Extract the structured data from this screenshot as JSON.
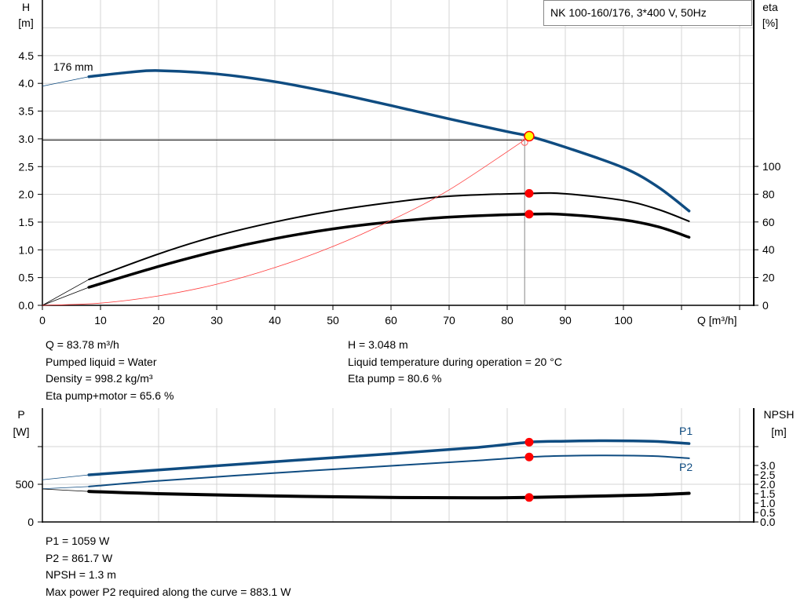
{
  "chart_data": [
    {
      "type": "line",
      "legend_box": "NK 100-160/176, 3*400 V, 50Hz",
      "curve_label": "176 mm",
      "xlabel": "Q [m³/h]",
      "ylabel_left": [
        "H",
        "[m]"
      ],
      "ylabel_right": [
        "eta",
        "[%]"
      ],
      "xlim": [
        0,
        120
      ],
      "ylim_left": [
        0,
        5
      ],
      "ylim_right": [
        0,
        220
      ],
      "x_ticks": [
        "0",
        "10",
        "20",
        "30",
        "40",
        "50",
        "60",
        "70",
        "80",
        "90",
        "100"
      ],
      "y_ticks_left": [
        "0.0",
        "0.5",
        "1.0",
        "1.5",
        "2.0",
        "2.5",
        "3.0",
        "3.5",
        "4.0",
        "4.5"
      ],
      "y_ticks_right": [
        "0",
        "20",
        "40",
        "60",
        "80",
        "100"
      ],
      "grid": true,
      "series": [
        {
          "id": "head",
          "axis": "left",
          "color": "#0f4c81",
          "points": [
            [
              8,
              4.12
            ],
            [
              15,
              4.2
            ],
            [
              20,
              4.23
            ],
            [
              30,
              4.17
            ],
            [
              40,
              4.03
            ],
            [
              50,
              3.83
            ],
            [
              60,
              3.6
            ],
            [
              70,
              3.36
            ],
            [
              80,
              3.13
            ],
            [
              83.78,
              3.048
            ],
            [
              90,
              2.85
            ],
            [
              100,
              2.48
            ],
            [
              106,
              2.13
            ],
            [
              111.3,
              1.7
            ]
          ],
          "extension": [
            [
              0,
              3.95
            ],
            [
              8,
              4.12
            ]
          ]
        },
        {
          "id": "eta-pump",
          "axis": "right",
          "color": "#000000",
          "points": [
            [
              8,
              18.6
            ],
            [
              20,
              37
            ],
            [
              30,
              50
            ],
            [
              40,
              60
            ],
            [
              50,
              68
            ],
            [
              60,
              74
            ],
            [
              70,
              78.5
            ],
            [
              83.78,
              80.6
            ],
            [
              90,
              80.3
            ],
            [
              100,
              75.5
            ],
            [
              106,
              69
            ],
            [
              111.3,
              60.5
            ]
          ],
          "extension": [
            [
              0,
              0
            ],
            [
              8,
              18.6
            ]
          ]
        },
        {
          "id": "eta-pump-motor",
          "axis": "right",
          "color": "#000000",
          "points": [
            [
              8,
              13
            ],
            [
              20,
              28
            ],
            [
              30,
              39
            ],
            [
              40,
              48
            ],
            [
              50,
              55
            ],
            [
              60,
              60
            ],
            [
              70,
              63.5
            ],
            [
              83.78,
              65.6
            ],
            [
              90,
              65.3
            ],
            [
              100,
              61.5
            ],
            [
              106,
              56.5
            ],
            [
              111.3,
              49
            ]
          ],
          "extension": [
            [
              0,
              0
            ],
            [
              8,
              13
            ]
          ]
        },
        {
          "id": "system-curve",
          "axis": "left",
          "color": "#ff3b3b",
          "points": [
            [
              0,
              0
            ],
            [
              10,
              0.04
            ],
            [
              20,
              0.17
            ],
            [
              30,
              0.38
            ],
            [
              40,
              0.68
            ],
            [
              50,
              1.06
            ],
            [
              60,
              1.53
            ],
            [
              70,
              2.08
            ],
            [
              83,
              2.98
            ]
          ]
        }
      ],
      "operating_point": {
        "Q": 83.78,
        "H": 3.048,
        "eta_pump": 80.6,
        "eta_pump_motor": 65.6
      },
      "duty_point": {
        "Q": 83,
        "H": 2.98
      }
    },
    {
      "type": "line",
      "ylabel_left": [
        "P",
        "[W]"
      ],
      "ylabel_right": [
        "NPSH",
        "[m]"
      ],
      "xlim": [
        0,
        120
      ],
      "ylim_left": [
        0,
        1100
      ],
      "ylim_right": [
        0,
        4.3
      ],
      "y_ticks_left": [
        "0",
        "500",
        ""
      ],
      "y_ticks_right": [
        "0.0",
        "0.5",
        "1.0",
        "1.5",
        "2.0",
        "2.5",
        "3.0"
      ],
      "grid": true,
      "series": [
        {
          "id": "P1",
          "name": "P1",
          "axis": "left",
          "color": "#0f4c81",
          "points": [
            [
              8,
              625
            ],
            [
              20,
              690
            ],
            [
              40,
              800
            ],
            [
              60,
              905
            ],
            [
              75,
              990
            ],
            [
              83.78,
              1059
            ],
            [
              90,
              1072
            ],
            [
              97,
              1078
            ],
            [
              105,
              1070
            ],
            [
              111.3,
              1040
            ]
          ],
          "extension": [
            [
              0,
              560
            ],
            [
              8,
              625
            ]
          ]
        },
        {
          "id": "P2",
          "name": "P2",
          "axis": "left",
          "color": "#0f4c81",
          "points": [
            [
              8,
              470
            ],
            [
              20,
              545
            ],
            [
              40,
              650
            ],
            [
              60,
              745
            ],
            [
              75,
              815
            ],
            [
              83.78,
              861.7
            ],
            [
              90,
              878
            ],
            [
              97,
              883.1
            ],
            [
              105,
              875
            ],
            [
              111.3,
              845
            ]
          ],
          "extension": [
            [
              0,
              440
            ],
            [
              8,
              470
            ]
          ]
        },
        {
          "id": "NPSH",
          "axis": "right",
          "color": "#000000",
          "points": [
            [
              8,
              1.62
            ],
            [
              20,
              1.5
            ],
            [
              40,
              1.38
            ],
            [
              60,
              1.3
            ],
            [
              75,
              1.28
            ],
            [
              83.78,
              1.3
            ],
            [
              95,
              1.37
            ],
            [
              105,
              1.44
            ],
            [
              111.3,
              1.52
            ]
          ],
          "extension": [
            [
              0,
              1.75
            ],
            [
              8,
              1.62
            ]
          ]
        }
      ],
      "operating_point": {
        "Q": 83.78,
        "P1": 1059,
        "P2": 861.7,
        "NPSH": 1.3
      }
    }
  ],
  "info_top": {
    "left": [
      "Q = 83.78 m³/h",
      "Pumped liquid = Water",
      "Density = 998.2 kg/m³",
      "Eta pump+motor = 65.6 %"
    ],
    "right": [
      "H = 3.048 m",
      "Liquid temperature during operation = 20 °C",
      "Eta pump = 80.6 %"
    ]
  },
  "info_bottom": [
    "P1 = 1059 W",
    "P2 = 861.7 W",
    "NPSH = 1.3 m",
    "Max power P2 required along the curve = 883.1 W"
  ]
}
